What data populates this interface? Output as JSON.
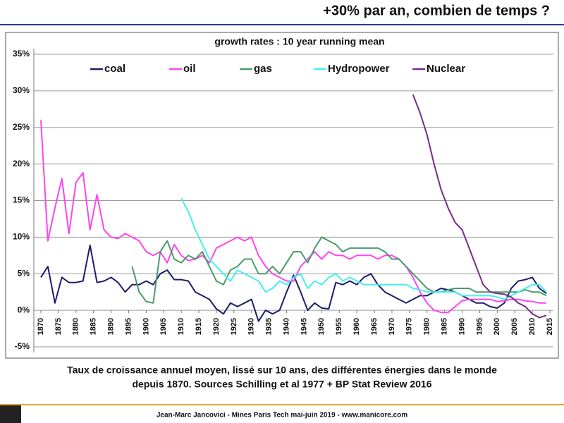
{
  "header": {
    "title": "+30% par an, combien de temps ?"
  },
  "chart_data": {
    "type": "line",
    "title": "growth rates : 10 year running mean",
    "x": [
      1870,
      1872,
      1874,
      1876,
      1878,
      1880,
      1882,
      1884,
      1886,
      1888,
      1890,
      1892,
      1894,
      1896,
      1898,
      1900,
      1902,
      1904,
      1906,
      1908,
      1910,
      1912,
      1914,
      1916,
      1918,
      1920,
      1922,
      1924,
      1926,
      1928,
      1930,
      1932,
      1934,
      1936,
      1938,
      1940,
      1942,
      1944,
      1946,
      1948,
      1950,
      1952,
      1954,
      1956,
      1958,
      1960,
      1962,
      1964,
      1966,
      1968,
      1970,
      1972,
      1974,
      1976,
      1978,
      1980,
      1982,
      1984,
      1986,
      1988,
      1990,
      1992,
      1994,
      1996,
      1998,
      2000,
      2002,
      2004,
      2006,
      2008,
      2010,
      2012,
      2014
    ],
    "series": [
      {
        "name": "coal",
        "color": "#1c1c6e",
        "values": [
          4.5,
          6,
          1,
          4.5,
          3.8,
          3.8,
          4,
          8.9,
          3.8,
          4,
          4.5,
          3.8,
          2.5,
          3.5,
          3.5,
          4,
          3.5,
          5,
          5.5,
          4.2,
          4.2,
          4,
          2.5,
          2,
          1.5,
          0.2,
          -0.5,
          1,
          0.5,
          1,
          1.5,
          -1.5,
          0,
          -0.5,
          0,
          2.5,
          4.8,
          2.5,
          0,
          1,
          0.3,
          0.2,
          3.8,
          3.5,
          4,
          3.5,
          4.5,
          5,
          3.5,
          2.5,
          2,
          1.5,
          1,
          1.5,
          2,
          2,
          2.5,
          3,
          2.8,
          2.5,
          2,
          1.5,
          1,
          1,
          0.5,
          0.3,
          1,
          3,
          4,
          4.2,
          4.5,
          3,
          2.3
        ]
      },
      {
        "name": "oil",
        "color": "#ff44ee",
        "values": [
          26,
          9.5,
          14,
          18,
          10.5,
          17.5,
          18.8,
          11,
          15.8,
          11,
          10,
          9.8,
          10.5,
          10,
          9.5,
          8,
          7.5,
          8,
          6.5,
          9,
          7.5,
          6.8,
          7,
          7.5,
          6.5,
          8.5,
          9,
          9.5,
          10,
          9.5,
          10,
          7.5,
          6,
          5,
          4.5,
          4,
          4,
          6,
          7,
          8,
          7,
          8,
          7.5,
          7.5,
          7,
          7.5,
          7.5,
          7.5,
          7,
          7.5,
          7.5,
          7,
          6,
          4.5,
          2.5,
          1,
          0,
          -0.3,
          -0.3,
          0.5,
          1.3,
          1.5,
          1.5,
          1.5,
          1.5,
          1.2,
          1.3,
          1.5,
          1.5,
          1.3,
          1.2,
          1,
          1
        ]
      },
      {
        "name": "gas",
        "color": "#4a9a6a",
        "values": [
          null,
          null,
          null,
          null,
          null,
          null,
          null,
          null,
          null,
          null,
          null,
          null,
          null,
          6,
          2.5,
          1.2,
          1,
          8,
          9.5,
          7,
          6.5,
          7.5,
          7,
          8,
          6,
          4,
          3.5,
          5.5,
          6,
          7,
          7,
          5,
          5,
          6,
          5,
          6.5,
          8,
          8,
          6.5,
          8.5,
          10,
          9.5,
          9,
          8,
          8.5,
          8.5,
          8.5,
          8.5,
          8.5,
          8,
          7,
          7,
          6,
          5,
          4,
          3,
          2.5,
          2.5,
          2.8,
          3,
          3,
          3,
          2.5,
          2.5,
          2.5,
          2.5,
          2.5,
          2.5,
          2.5,
          2.8,
          2.5,
          2.5,
          2
        ]
      },
      {
        "name": "Hydropower",
        "color": "#44eeee",
        "values": [
          null,
          null,
          null,
          null,
          null,
          null,
          null,
          null,
          null,
          null,
          null,
          null,
          null,
          null,
          null,
          null,
          null,
          null,
          null,
          null,
          15.3,
          13.5,
          11,
          9,
          7,
          6,
          5,
          4,
          5.5,
          5,
          4.5,
          4,
          2.5,
          3,
          4,
          3.5,
          4.5,
          5,
          3,
          4,
          3.5,
          4.5,
          5,
          4,
          4.5,
          4,
          3.5,
          3.5,
          3.5,
          3.5,
          3.5,
          3.5,
          3.5,
          3,
          2.8,
          2.5,
          2.5,
          2.5,
          2.5,
          2.5,
          2,
          2,
          2,
          2,
          2,
          1.8,
          1.5,
          2,
          2.5,
          3,
          3.5,
          3.5,
          2.5
        ]
      },
      {
        "name": "Nuclear",
        "color": "#7a2a8a",
        "values": [
          null,
          null,
          null,
          null,
          null,
          null,
          null,
          null,
          null,
          null,
          null,
          null,
          null,
          null,
          null,
          null,
          null,
          null,
          null,
          null,
          null,
          null,
          null,
          null,
          null,
          null,
          null,
          null,
          null,
          null,
          null,
          null,
          null,
          null,
          null,
          null,
          null,
          null,
          null,
          null,
          null,
          null,
          null,
          null,
          null,
          null,
          null,
          null,
          null,
          null,
          null,
          null,
          null,
          29.5,
          27,
          24,
          20,
          16.5,
          14,
          12,
          11,
          8.5,
          6,
          3.5,
          2.5,
          2.3,
          2.2,
          1.8,
          1,
          0.5,
          -0.5,
          -1,
          -0.7
        ]
      }
    ],
    "xlim": [
      1868,
      2016
    ],
    "xticks": [
      1870,
      1875,
      1880,
      1885,
      1890,
      1895,
      1900,
      1905,
      1910,
      1915,
      1920,
      1925,
      1930,
      1935,
      1940,
      1945,
      1950,
      1955,
      1960,
      1965,
      1970,
      1975,
      1980,
      1985,
      1990,
      1995,
      2000,
      2005,
      2010,
      2015
    ],
    "ylim": [
      -5,
      35
    ],
    "yticks": [
      {
        "value": -5,
        "label": "-5%"
      },
      {
        "value": 0,
        "label": "0%"
      },
      {
        "value": 5,
        "label": "5%"
      },
      {
        "value": 10,
        "label": "10%"
      },
      {
        "value": 15,
        "label": "15%"
      },
      {
        "value": 20,
        "label": "20%"
      },
      {
        "value": 25,
        "label": "25%"
      },
      {
        "value": 30,
        "label": "30%"
      },
      {
        "value": 35,
        "label": "35%"
      }
    ],
    "grid": true
  },
  "caption": [
    "Taux de croissance annuel moyen, lissé sur 10 ans, des différentes énergies dans le monde",
    "depuis 1870. Sources Schilling et al 1977 + BP Stat Review 2016"
  ],
  "footer": "Jean-Marc Jancovici - Mines Paris Tech mai-juin 2019 - www.manicore.com"
}
